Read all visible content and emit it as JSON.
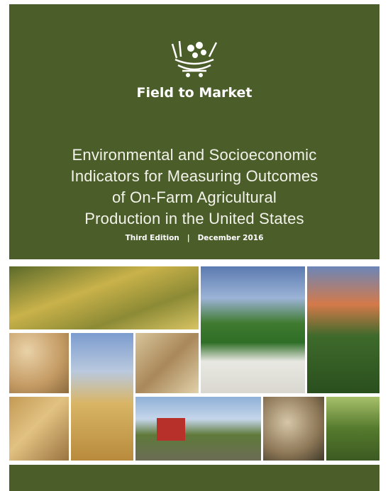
{
  "cover": {
    "brand": "Field to Market",
    "title_lines": [
      "Environmental and Socioeconomic",
      "Indicators for Measuring Outcomes",
      "of On-Farm Agricultural",
      "Production in the United States"
    ],
    "edition": "Third Edition",
    "date": "December 2016"
  }
}
